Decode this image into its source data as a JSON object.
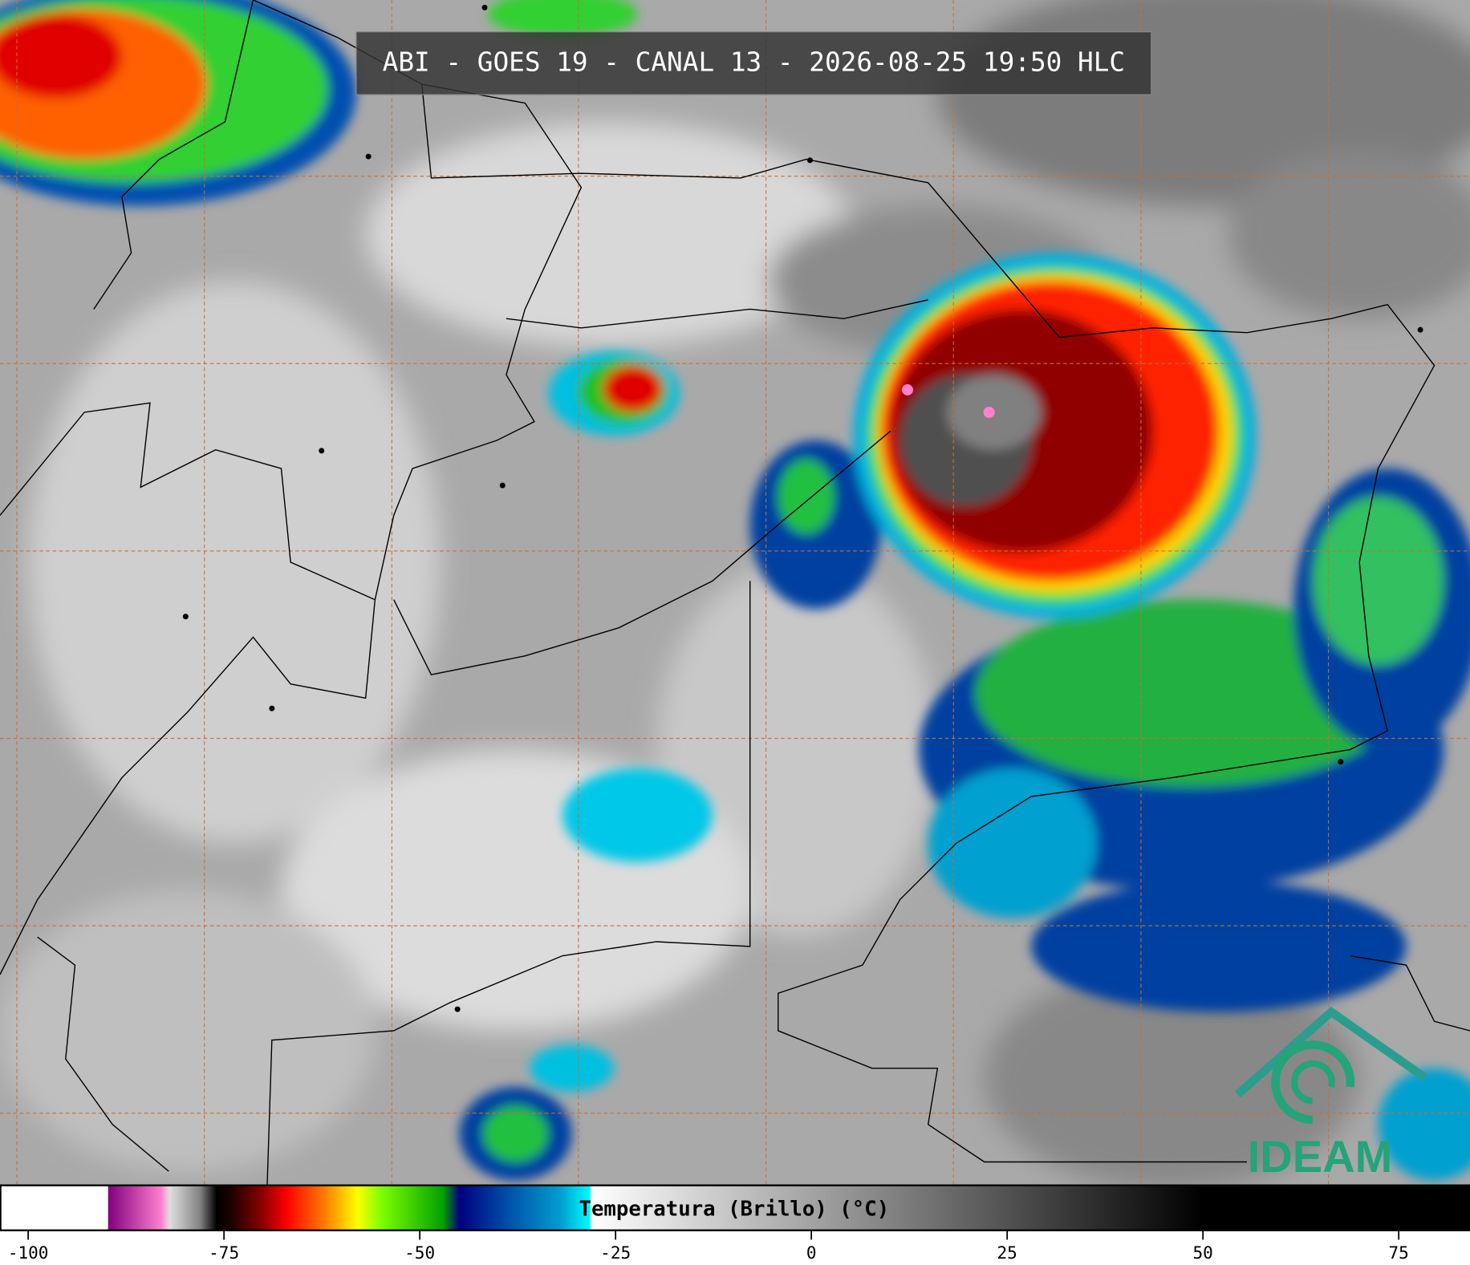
{
  "header": {
    "title": "ABI - GOES 19 - CANAL 13 - 2026-08-25 19:50 HLC"
  },
  "colorbar": {
    "label": "Temperatura (Brillo) (°C)",
    "xlim": [
      -103.6,
      84.1
    ],
    "xticks": [
      -100,
      -75,
      -50,
      -25,
      0,
      25,
      50,
      75
    ],
    "stops": [
      {
        "value": -103.6,
        "color": "#ffffff"
      },
      {
        "value": -89.8,
        "color": "#ffffff"
      },
      {
        "value": -89.8,
        "color": "#800080"
      },
      {
        "value": -83,
        "color": "#ff80d0"
      },
      {
        "value": -82,
        "color": "#e0e0e0"
      },
      {
        "value": -78,
        "color": "#808080"
      },
      {
        "value": -76,
        "color": "#000000"
      },
      {
        "value": -74,
        "color": "#200000"
      },
      {
        "value": -70,
        "color": "#900000"
      },
      {
        "value": -67,
        "color": "#ff0000"
      },
      {
        "value": -62,
        "color": "#ff8000"
      },
      {
        "value": -58,
        "color": "#ffff00"
      },
      {
        "value": -55,
        "color": "#80ff00"
      },
      {
        "value": -47,
        "color": "#00a000"
      },
      {
        "value": -45,
        "color": "#000080"
      },
      {
        "value": -40,
        "color": "#0040a0"
      },
      {
        "value": -32,
        "color": "#00a0d0"
      },
      {
        "value": -28.2,
        "color": "#00ffff"
      },
      {
        "value": -28.2,
        "color": "#ffffff"
      },
      {
        "value": 50,
        "color": "#000000"
      },
      {
        "value": 84.1,
        "color": "#000000"
      }
    ]
  },
  "logo": {
    "text": "IDEAM"
  }
}
